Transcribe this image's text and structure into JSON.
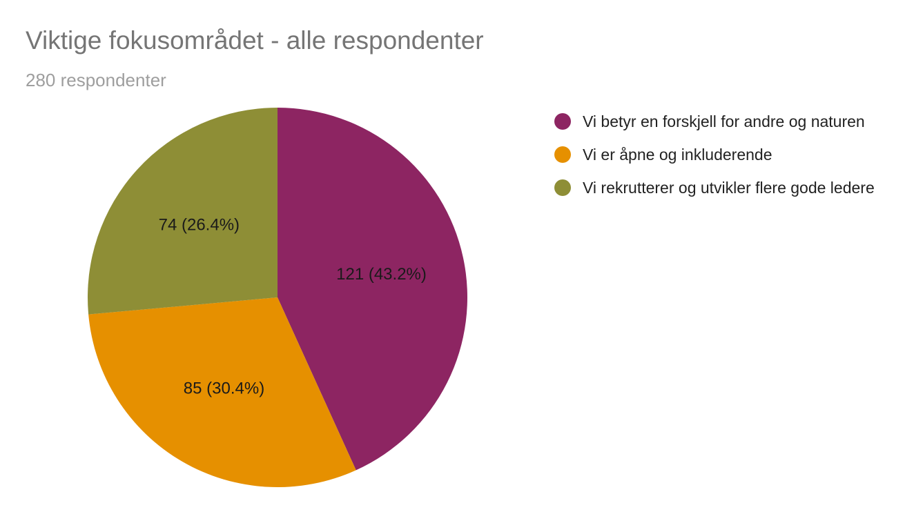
{
  "chart_data": {
    "type": "pie",
    "title": "Viktige fokusområdet - alle respondenter",
    "subtitle": "280 respondenter",
    "legend_position": "right",
    "slices": [
      {
        "name": "Vi betyr en forskjell for andre og naturen",
        "value": 121,
        "percent": 43.2,
        "label": "121 (43.2%)",
        "color": "#8d2562"
      },
      {
        "name": "Vi er åpne og inkluderende",
        "value": 85,
        "percent": 30.4,
        "label": "85 (30.4%)",
        "color": "#e69000"
      },
      {
        "name": "Vi rekrutterer og utvikler flere gode ledere",
        "value": 74,
        "percent": 26.4,
        "label": "74 (26.4%)",
        "color": "#8e8e36"
      }
    ]
  }
}
